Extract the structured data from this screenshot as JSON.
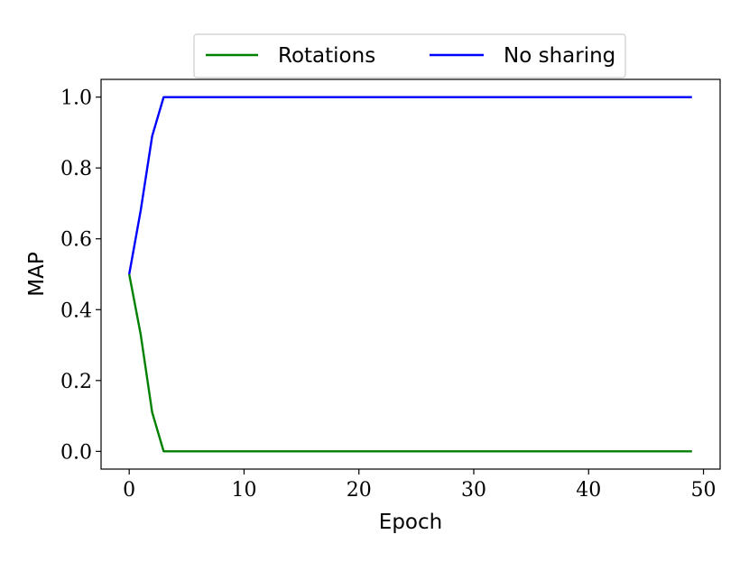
{
  "chart_data": {
    "type": "line",
    "title": "",
    "xlabel": "Epoch",
    "ylabel": "MAP",
    "xlim": [
      -2.45,
      51.45
    ],
    "ylim": [
      -0.05,
      1.05
    ],
    "xticks": [
      0,
      10,
      20,
      30,
      40,
      50
    ],
    "xtick_labels": [
      "0",
      "10",
      "20",
      "30",
      "40",
      "50"
    ],
    "yticks": [
      0.0,
      0.2,
      0.4,
      0.6,
      0.8,
      1.0
    ],
    "ytick_labels": [
      "0.0",
      "0.2",
      "0.4",
      "0.6",
      "0.8",
      "1.0"
    ],
    "grid": false,
    "legend_position": "top-center, above plot",
    "series": [
      {
        "name": "Rotations",
        "color": "#008000",
        "x": [
          0,
          1,
          2,
          3,
          4,
          5,
          6,
          7,
          8,
          9,
          10,
          11,
          12,
          13,
          14,
          15,
          16,
          17,
          18,
          19,
          20,
          21,
          22,
          23,
          24,
          25,
          26,
          27,
          28,
          29,
          30,
          31,
          32,
          33,
          34,
          35,
          36,
          37,
          38,
          39,
          40,
          41,
          42,
          43,
          44,
          45,
          46,
          47,
          48,
          49
        ],
        "values": [
          0.5,
          0.33,
          0.11,
          0.0,
          0.0,
          0.0,
          0.0,
          0.0,
          0.0,
          0.0,
          0.0,
          0.0,
          0.0,
          0.0,
          0.0,
          0.0,
          0.0,
          0.0,
          0.0,
          0.0,
          0.0,
          0.0,
          0.0,
          0.0,
          0.0,
          0.0,
          0.0,
          0.0,
          0.0,
          0.0,
          0.0,
          0.0,
          0.0,
          0.0,
          0.0,
          0.0,
          0.0,
          0.0,
          0.0,
          0.0,
          0.0,
          0.0,
          0.0,
          0.0,
          0.0,
          0.0,
          0.0,
          0.0,
          0.0,
          0.0
        ]
      },
      {
        "name": "No sharing",
        "color": "#0000ff",
        "x": [
          0,
          1,
          2,
          3,
          4,
          5,
          6,
          7,
          8,
          9,
          10,
          11,
          12,
          13,
          14,
          15,
          16,
          17,
          18,
          19,
          20,
          21,
          22,
          23,
          24,
          25,
          26,
          27,
          28,
          29,
          30,
          31,
          32,
          33,
          34,
          35,
          36,
          37,
          38,
          39,
          40,
          41,
          42,
          43,
          44,
          45,
          46,
          47,
          48,
          49
        ],
        "values": [
          0.5,
          0.68,
          0.89,
          1.0,
          1.0,
          1.0,
          1.0,
          1.0,
          1.0,
          1.0,
          1.0,
          1.0,
          1.0,
          1.0,
          1.0,
          1.0,
          1.0,
          1.0,
          1.0,
          1.0,
          1.0,
          1.0,
          1.0,
          1.0,
          1.0,
          1.0,
          1.0,
          1.0,
          1.0,
          1.0,
          1.0,
          1.0,
          1.0,
          1.0,
          1.0,
          1.0,
          1.0,
          1.0,
          1.0,
          1.0,
          1.0,
          1.0,
          1.0,
          1.0,
          1.0,
          1.0,
          1.0,
          1.0,
          1.0,
          1.0
        ]
      }
    ]
  }
}
